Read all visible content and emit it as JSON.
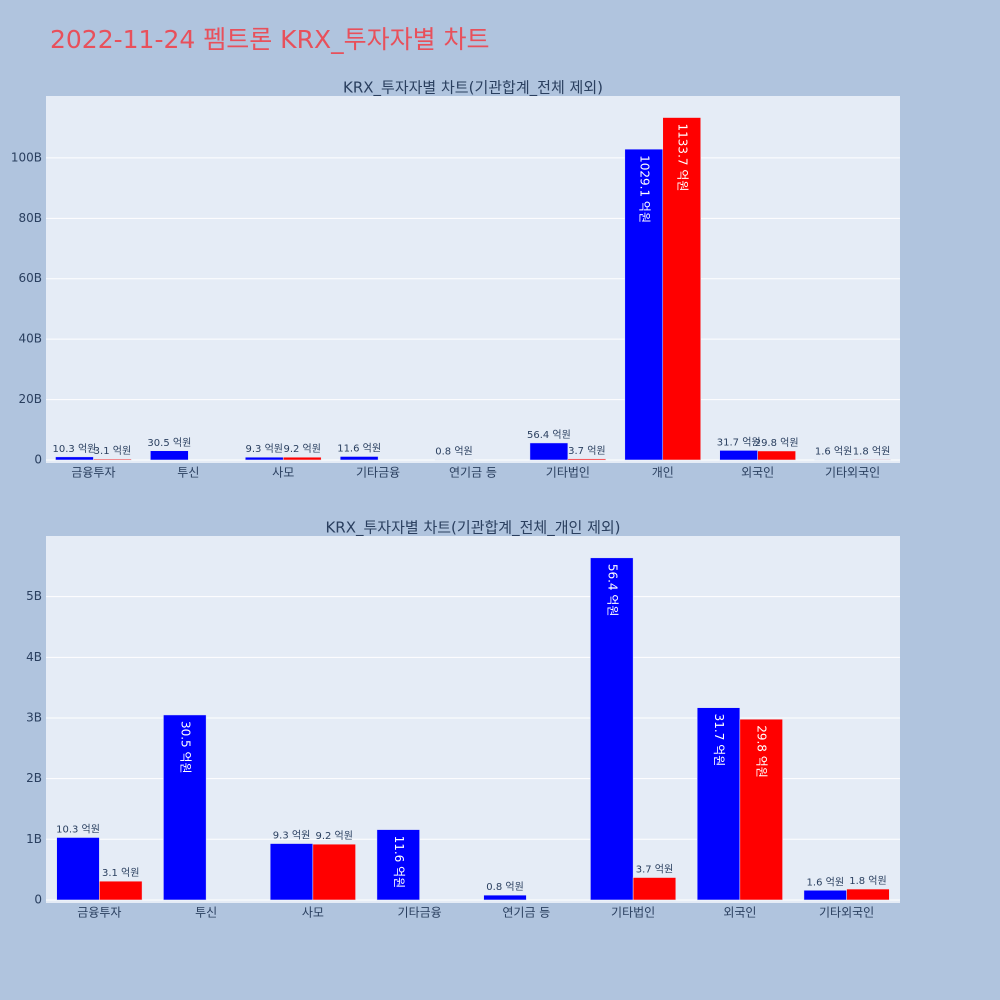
{
  "title": "2022-11-24 펨트론 KRX_투자자별 차트",
  "chart_data": [
    {
      "type": "bar",
      "title": "KRX_투자자별 차트(기관합계_전체 제외)",
      "categories": [
        "금융투자",
        "투신",
        "사모",
        "기타금융",
        "연기금 등",
        "기타법인",
        "개인",
        "외국인",
        "기타외국인"
      ],
      "series": [
        {
          "color": "#0000ff",
          "values": [
            1030000000,
            3050000000,
            930000000,
            1160000000,
            80000000,
            5640000000,
            102910000000,
            3170000000,
            160000000
          ],
          "value_labels": [
            "10.3 억원",
            "30.5 억원",
            "9.3 억원",
            "11.6 억원",
            "0.8 억원",
            "56.4 억원",
            "1029.1 억원",
            "31.7 억원",
            "1.6 억원"
          ]
        },
        {
          "color": "#ff0000",
          "values": [
            310000000,
            null,
            920000000,
            null,
            null,
            370000000,
            113370000000,
            2980000000,
            180000000
          ],
          "value_labels": [
            "3.1 억원",
            null,
            "9.2 억원",
            null,
            null,
            "3.7 억원",
            "1133.7 억원",
            "29.8 억원",
            "1.8 억원"
          ]
        }
      ],
      "ylim": [
        -1000000000,
        120500000000
      ],
      "yticks": [
        0,
        {
          "value": 20000000000,
          "label": "20B"
        },
        {
          "value": 40000000000,
          "label": "40B"
        },
        {
          "value": 60000000000,
          "label": "60B"
        },
        {
          "value": 80000000000,
          "label": "80B"
        },
        {
          "value": 100000000000,
          "label": "100B"
        }
      ],
      "grid": true
    },
    {
      "type": "bar",
      "title": "KRX_투자자별 차트(기관합계_전체_개인 제외)",
      "categories": [
        "금융투자",
        "투신",
        "사모",
        "기타금융",
        "연기금 등",
        "기타법인",
        "외국인",
        "기타외국인"
      ],
      "series": [
        {
          "color": "#0000ff",
          "values": [
            1030000000,
            3050000000,
            930000000,
            1160000000,
            80000000,
            5640000000,
            3170000000,
            160000000
          ],
          "value_labels": [
            "10.3 억원",
            "30.5 억원",
            "9.3 억원",
            "11.6 억원",
            "0.8 억원",
            "56.4 억원",
            "31.7 억원",
            "1.6 억원"
          ]
        },
        {
          "color": "#ff0000",
          "values": [
            310000000,
            null,
            920000000,
            null,
            null,
            370000000,
            2980000000,
            180000000
          ],
          "value_labels": [
            "3.1 억원",
            null,
            "9.2 억원",
            null,
            null,
            "3.7 억원",
            "29.8 억원",
            "1.8 억원"
          ]
        }
      ],
      "ylim": [
        -50000000,
        6000000000
      ],
      "yticks": [
        0,
        {
          "value": 1000000000,
          "label": "1B"
        },
        {
          "value": 2000000000,
          "label": "2B"
        },
        {
          "value": 3000000000,
          "label": "3B"
        },
        {
          "value": 4000000000,
          "label": "4B"
        },
        {
          "value": 5000000000,
          "label": "5B"
        }
      ],
      "grid": true
    }
  ]
}
